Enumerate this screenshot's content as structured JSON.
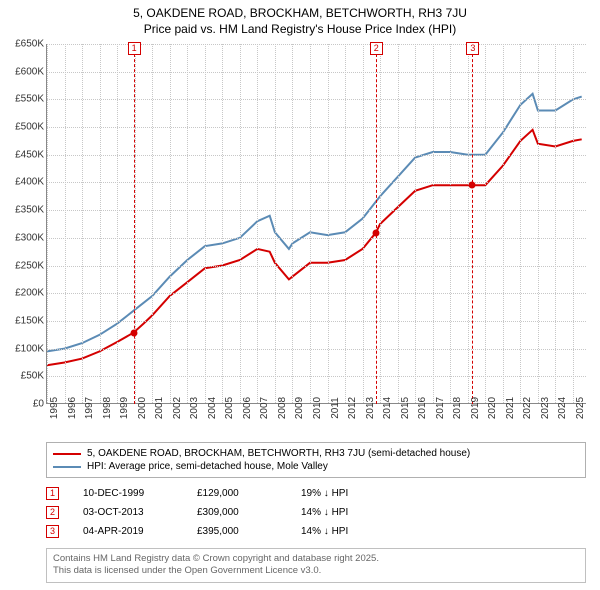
{
  "title_line1": "5, OAKDENE ROAD, BROCKHAM, BETCHWORTH, RH3 7JU",
  "title_line2": "Price paid vs. HM Land Registry's House Price Index (HPI)",
  "chart": {
    "type": "line",
    "background_color": "#ffffff",
    "grid_color": "#c7c7c7",
    "axis_color": "#888888",
    "y": {
      "min": 0,
      "max": 650000,
      "step": 50000,
      "labels": [
        "£0",
        "£50K",
        "£100K",
        "£150K",
        "£200K",
        "£250K",
        "£300K",
        "£350K",
        "£400K",
        "£450K",
        "£500K",
        "£550K",
        "£600K",
        "£650K"
      ]
    },
    "x": {
      "min": 1995,
      "max": 2025.8,
      "ticks": [
        1995,
        1996,
        1997,
        1998,
        1999,
        2000,
        2001,
        2002,
        2003,
        2004,
        2005,
        2006,
        2007,
        2008,
        2009,
        2010,
        2011,
        2012,
        2013,
        2014,
        2015,
        2016,
        2017,
        2018,
        2019,
        2020,
        2021,
        2022,
        2023,
        2024,
        2025
      ]
    },
    "series": [
      {
        "name": "property",
        "color": "#d40000",
        "width": 2,
        "points": [
          [
            1995,
            70000
          ],
          [
            1996,
            75000
          ],
          [
            1997,
            82000
          ],
          [
            1998,
            95000
          ],
          [
            1999,
            112000
          ],
          [
            1999.94,
            129000
          ],
          [
            2000.5,
            145000
          ],
          [
            2001,
            160000
          ],
          [
            2002,
            195000
          ],
          [
            2003,
            220000
          ],
          [
            2004,
            245000
          ],
          [
            2005,
            250000
          ],
          [
            2006,
            260000
          ],
          [
            2007,
            280000
          ],
          [
            2007.7,
            275000
          ],
          [
            2008,
            255000
          ],
          [
            2008.8,
            225000
          ],
          [
            2009,
            230000
          ],
          [
            2010,
            255000
          ],
          [
            2011,
            255000
          ],
          [
            2012,
            260000
          ],
          [
            2013,
            280000
          ],
          [
            2013.75,
            309000
          ],
          [
            2014,
            325000
          ],
          [
            2015,
            355000
          ],
          [
            2016,
            385000
          ],
          [
            2017,
            395000
          ],
          [
            2018,
            395000
          ],
          [
            2019.26,
            395000
          ],
          [
            2020,
            395000
          ],
          [
            2021,
            430000
          ],
          [
            2022,
            475000
          ],
          [
            2022.7,
            495000
          ],
          [
            2023,
            470000
          ],
          [
            2024,
            465000
          ],
          [
            2025,
            475000
          ],
          [
            2025.5,
            478000
          ]
        ]
      },
      {
        "name": "hpi",
        "color": "#5b8bb5",
        "width": 2,
        "points": [
          [
            1995,
            95000
          ],
          [
            1996,
            100000
          ],
          [
            1997,
            110000
          ],
          [
            1998,
            125000
          ],
          [
            1999,
            145000
          ],
          [
            2000,
            170000
          ],
          [
            2001,
            195000
          ],
          [
            2002,
            230000
          ],
          [
            2003,
            260000
          ],
          [
            2004,
            285000
          ],
          [
            2005,
            290000
          ],
          [
            2006,
            300000
          ],
          [
            2007,
            330000
          ],
          [
            2007.7,
            340000
          ],
          [
            2008,
            310000
          ],
          [
            2008.8,
            280000
          ],
          [
            2009,
            290000
          ],
          [
            2010,
            310000
          ],
          [
            2011,
            305000
          ],
          [
            2012,
            310000
          ],
          [
            2013,
            335000
          ],
          [
            2014,
            375000
          ],
          [
            2015,
            410000
          ],
          [
            2016,
            445000
          ],
          [
            2017,
            455000
          ],
          [
            2018,
            455000
          ],
          [
            2019,
            450000
          ],
          [
            2020,
            450000
          ],
          [
            2021,
            490000
          ],
          [
            2022,
            540000
          ],
          [
            2022.7,
            560000
          ],
          [
            2023,
            530000
          ],
          [
            2024,
            530000
          ],
          [
            2025,
            550000
          ],
          [
            2025.5,
            555000
          ]
        ]
      }
    ],
    "markers": [
      {
        "n": "1",
        "year": 1999.94,
        "price": 129000,
        "color": "#d40000"
      },
      {
        "n": "2",
        "year": 2013.75,
        "price": 309000,
        "color": "#d40000"
      },
      {
        "n": "3",
        "year": 2019.26,
        "price": 395000,
        "color": "#d40000"
      }
    ]
  },
  "legend": {
    "border_color": "#b0b0b0",
    "items": [
      {
        "color": "#d40000",
        "label": "5, OAKDENE ROAD, BROCKHAM, BETCHWORTH, RH3 7JU (semi-detached house)"
      },
      {
        "color": "#5b8bb5",
        "label": "HPI: Average price, semi-detached house, Mole Valley"
      }
    ]
  },
  "sales": [
    {
      "n": "1",
      "date": "10-DEC-1999",
      "price": "£129,000",
      "delta": "19% ↓ HPI",
      "color": "#d40000"
    },
    {
      "n": "2",
      "date": "03-OCT-2013",
      "price": "£309,000",
      "delta": "14% ↓ HPI",
      "color": "#d40000"
    },
    {
      "n": "3",
      "date": "04-APR-2019",
      "price": "£395,000",
      "delta": "14% ↓ HPI",
      "color": "#d40000"
    }
  ],
  "footer_line1": "Contains HM Land Registry data © Crown copyright and database right 2025.",
  "footer_line2": "This data is licensed under the Open Government Licence v3.0."
}
